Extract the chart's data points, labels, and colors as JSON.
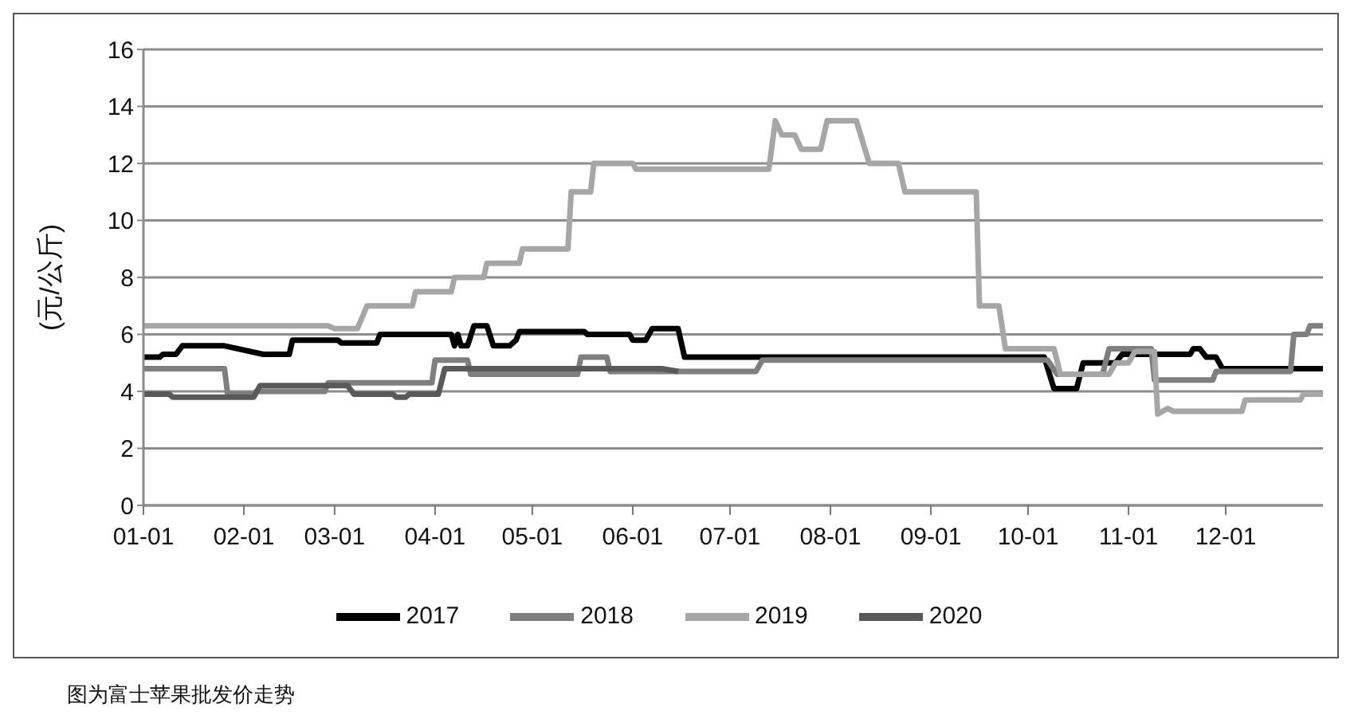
{
  "chart_data": {
    "type": "line",
    "ylabel": "(元/公斤)",
    "annotations": [
      "图为富士苹果批发价走势"
    ],
    "xlim": [
      "--01-01",
      "--12-31"
    ],
    "xticks": [
      {
        "value": "--01-01",
        "label": "01-01"
      },
      {
        "value": "--02-01",
        "label": "02-01"
      },
      {
        "value": "--03-01",
        "label": "03-01"
      },
      {
        "value": "--04-01",
        "label": "04-01"
      },
      {
        "value": "--05-01",
        "label": "05-01"
      },
      {
        "value": "--06-01",
        "label": "06-01"
      },
      {
        "value": "--07-01",
        "label": "07-01"
      },
      {
        "value": "--08-01",
        "label": "08-01"
      },
      {
        "value": "--09-01",
        "label": "09-01"
      },
      {
        "value": "--10-01",
        "label": "10-01"
      },
      {
        "value": "--11-01",
        "label": "11-01"
      },
      {
        "value": "--12-01",
        "label": "12-01"
      }
    ],
    "ylim": [
      0,
      16
    ],
    "yticks": [
      0,
      2,
      4,
      6,
      8,
      10,
      12,
      14,
      16
    ],
    "grid": "y",
    "legend": "bottom",
    "series": [
      {
        "name": "2017",
        "color": "#000000",
        "x": [
          "--01-01",
          "--01-06",
          "--01-07",
          "--01-11",
          "--01-13",
          "--01-26",
          "--02-07",
          "--02-15",
          "--02-16",
          "--03-02",
          "--03-03",
          "--03-14",
          "--03-15",
          "--04-06",
          "--04-07",
          "--04-08",
          "--04-09",
          "--04-11",
          "--04-13",
          "--04-17",
          "--04-19",
          "--04-24",
          "--04-26",
          "--04-27",
          "--05-17",
          "--05-18",
          "--05-31",
          "--06-01",
          "--06-05",
          "--06-07",
          "--06-15",
          "--06-17",
          "--10-06",
          "--10-09",
          "--10-16",
          "--10-18",
          "--10-28",
          "--10-30",
          "--11-20",
          "--11-21",
          "--11-23",
          "--11-25",
          "--11-28",
          "--11-30",
          "--12-31"
        ],
        "values": [
          5.2,
          5.2,
          5.3,
          5.3,
          5.6,
          5.6,
          5.3,
          5.3,
          5.8,
          5.8,
          5.7,
          5.7,
          6.0,
          6.0,
          5.6,
          6.0,
          5.6,
          5.6,
          6.3,
          6.3,
          5.6,
          5.6,
          5.8,
          6.1,
          6.1,
          6.0,
          6.0,
          5.8,
          5.8,
          6.2,
          6.2,
          5.2,
          5.2,
          4.1,
          4.1,
          5.0,
          5.0,
          5.3,
          5.3,
          5.5,
          5.5,
          5.2,
          5.2,
          4.8,
          4.8
        ]
      },
      {
        "name": "2018",
        "color": "#7f7f7f",
        "x": [
          "--01-01",
          "--01-26",
          "--01-27",
          "--02-04",
          "--02-05",
          "--02-26",
          "--02-27",
          "--03-31",
          "--04-01",
          "--04-11",
          "--04-12",
          "--05-15",
          "--05-16",
          "--05-24",
          "--05-25",
          "--07-09",
          "--07-11",
          "--10-07",
          "--10-10",
          "--10-24",
          "--10-26",
          "--11-08",
          "--11-09",
          "--11-27",
          "--11-28",
          "--12-21",
          "--12-22",
          "--12-26",
          "--12-27",
          "--12-31"
        ],
        "values": [
          4.8,
          4.8,
          3.9,
          3.9,
          4.0,
          4.0,
          4.3,
          4.3,
          5.1,
          5.1,
          4.6,
          4.6,
          5.2,
          5.2,
          4.7,
          4.7,
          5.1,
          5.1,
          4.6,
          4.6,
          5.5,
          5.5,
          4.4,
          4.4,
          4.7,
          4.7,
          6.0,
          6.0,
          6.3,
          6.3
        ]
      },
      {
        "name": "2019",
        "color": "#a6a6a6",
        "x": [
          "--01-01",
          "--02-27",
          "--03-01",
          "--03-08",
          "--03-11",
          "--03-25",
          "--03-26",
          "--04-06",
          "--04-07",
          "--04-16",
          "--04-17",
          "--04-27",
          "--04-28",
          "--05-12",
          "--05-13",
          "--05-19",
          "--05-20",
          "--06-01",
          "--06-02",
          "--07-13",
          "--07-15",
          "--07-17",
          "--07-21",
          "--07-23",
          "--07-29",
          "--07-31",
          "--08-09",
          "--08-13",
          "--08-22",
          "--08-24",
          "--09-15",
          "--09-16",
          "--09-22",
          "--09-24",
          "--10-09",
          "--10-11",
          "--10-26",
          "--10-28",
          "--11-01",
          "--11-03",
          "--11-09",
          "--11-10",
          "--11-13",
          "--11-15",
          "--12-06",
          "--12-07",
          "--12-24",
          "--12-25",
          "--12-31"
        ],
        "values": [
          6.3,
          6.3,
          6.2,
          6.2,
          7.0,
          7.0,
          7.5,
          7.5,
          8.0,
          8.0,
          8.5,
          8.5,
          9.0,
          9.0,
          11.0,
          11.0,
          12.0,
          12.0,
          11.8,
          11.8,
          13.5,
          13.0,
          13.0,
          12.5,
          12.5,
          13.5,
          13.5,
          12.0,
          12.0,
          11.0,
          11.0,
          7.0,
          7.0,
          5.5,
          5.5,
          4.6,
          4.6,
          5.0,
          5.0,
          5.4,
          5.4,
          3.2,
          3.4,
          3.3,
          3.3,
          3.7,
          3.7,
          3.9,
          3.9
        ]
      },
      {
        "name": "2020",
        "color": "#595959",
        "x": [
          "--01-01",
          "--01-09",
          "--01-10",
          "--02-04",
          "--02-06",
          "--03-05",
          "--03-07",
          "--03-19",
          "--03-20",
          "--03-23",
          "--03-24",
          "--04-02",
          "--04-04",
          "--06-10",
          "--06-15"
        ],
        "values": [
          3.9,
          3.9,
          3.8,
          3.8,
          4.2,
          4.2,
          3.9,
          3.9,
          3.8,
          3.8,
          3.9,
          3.9,
          4.8,
          4.8,
          4.7
        ]
      }
    ]
  }
}
